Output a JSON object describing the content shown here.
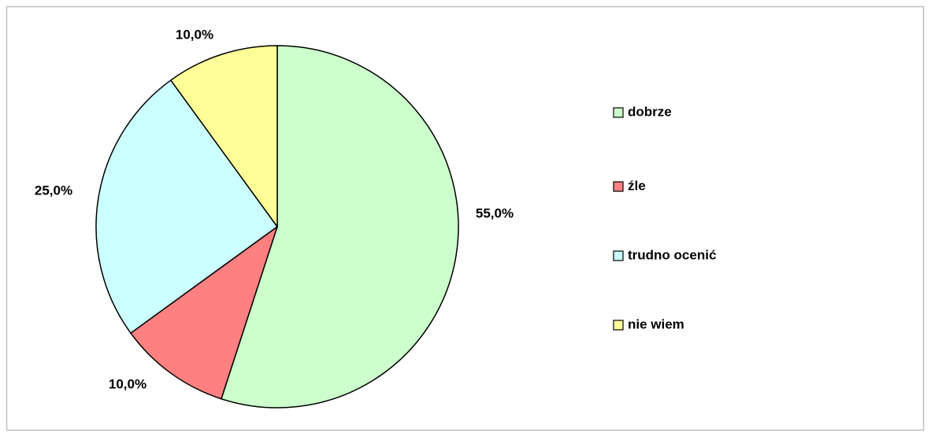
{
  "chart_data": {
    "type": "pie",
    "categories": [
      "dobrze",
      "źle",
      "trudno ocenić",
      "nie wiem"
    ],
    "values": [
      55,
      10,
      25,
      10
    ],
    "value_labels": [
      "55,0%",
      "10,0%",
      "25,0%",
      "10,0%"
    ],
    "colors": [
      "#ccffcc",
      "#ff8080",
      "#ccffff",
      "#ffff99"
    ],
    "legend": "right"
  }
}
